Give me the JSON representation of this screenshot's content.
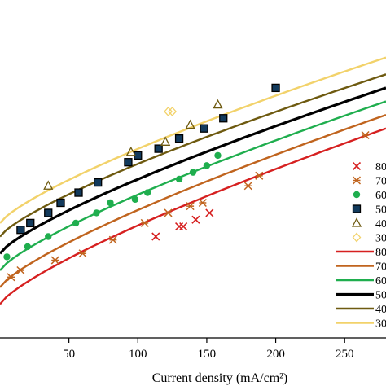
{
  "chart_data": {
    "type": "scatter",
    "xlabel": "Current density (mA/cm²)",
    "xlim": [
      0,
      280
    ],
    "ylim": [
      0,
      1
    ],
    "x_ticks": [
      50,
      100,
      150,
      200,
      250
    ],
    "x_tick_labels": [
      "50",
      "100",
      "150",
      "200",
      "250"
    ],
    "legend_position": "right",
    "legend_labels": [
      "80",
      "70",
      "60",
      "50",
      "40",
      "30",
      "80",
      "70",
      "60",
      "50",
      "40",
      "30"
    ],
    "series": [
      {
        "marker": "x",
        "color": "#d62020",
        "points": [
          [
            113,
            0.3
          ],
          [
            130,
            0.33
          ],
          [
            133,
            0.33
          ],
          [
            142,
            0.35
          ],
          [
            152,
            0.37
          ]
        ]
      },
      {
        "marker": "asterisk",
        "color": "#c0641e",
        "points": [
          [
            8,
            0.18
          ],
          [
            15,
            0.2
          ],
          [
            40,
            0.23
          ],
          [
            60,
            0.25
          ],
          [
            82,
            0.29
          ],
          [
            105,
            0.34
          ],
          [
            122,
            0.37
          ],
          [
            138,
            0.39
          ],
          [
            147,
            0.4
          ],
          [
            180,
            0.45
          ],
          [
            188,
            0.48
          ],
          [
            265,
            0.6
          ]
        ]
      },
      {
        "marker": "circle",
        "color": "#1fae4e",
        "points": [
          [
            5,
            0.24
          ],
          [
            20,
            0.27
          ],
          [
            35,
            0.3
          ],
          [
            55,
            0.34
          ],
          [
            70,
            0.37
          ],
          [
            80,
            0.4
          ],
          [
            98,
            0.41
          ],
          [
            107,
            0.43
          ],
          [
            130,
            0.47
          ],
          [
            140,
            0.49
          ],
          [
            150,
            0.51
          ],
          [
            158,
            0.54
          ]
        ]
      },
      {
        "marker": "square",
        "color": "#000000",
        "points": [
          [
            15,
            0.32
          ],
          [
            22,
            0.34
          ],
          [
            35,
            0.37
          ],
          [
            44,
            0.4
          ],
          [
            57,
            0.43
          ],
          [
            71,
            0.46
          ],
          [
            93,
            0.52
          ],
          [
            100,
            0.54
          ],
          [
            115,
            0.56
          ],
          [
            130,
            0.59
          ],
          [
            148,
            0.62
          ],
          [
            162,
            0.65
          ],
          [
            200,
            0.74
          ]
        ]
      },
      {
        "marker": "triangle",
        "color": "#6e5a10",
        "points": [
          [
            35,
            0.45
          ],
          [
            95,
            0.55
          ],
          [
            120,
            0.58
          ],
          [
            138,
            0.63
          ],
          [
            158,
            0.69
          ]
        ]
      },
      {
        "marker": "diamond",
        "color": "#f2d26a",
        "points": [
          [
            122,
            0.67
          ],
          [
            125,
            0.67
          ]
        ]
      }
    ],
    "fit_lines": [
      {
        "color": "#d62020",
        "y_at_0": 0.1,
        "y_at_280": 0.62
      },
      {
        "color": "#c0641e",
        "y_at_0": 0.15,
        "y_at_280": 0.66
      },
      {
        "color": "#1fae4e",
        "y_at_0": 0.2,
        "y_at_280": 0.7
      },
      {
        "color": "#000000",
        "y_at_0": 0.25,
        "y_at_280": 0.74
      },
      {
        "color": "#6e5a10",
        "y_at_0": 0.3,
        "y_at_280": 0.78
      },
      {
        "color": "#f2d26a",
        "y_at_0": 0.34,
        "y_at_280": 0.83
      }
    ]
  }
}
